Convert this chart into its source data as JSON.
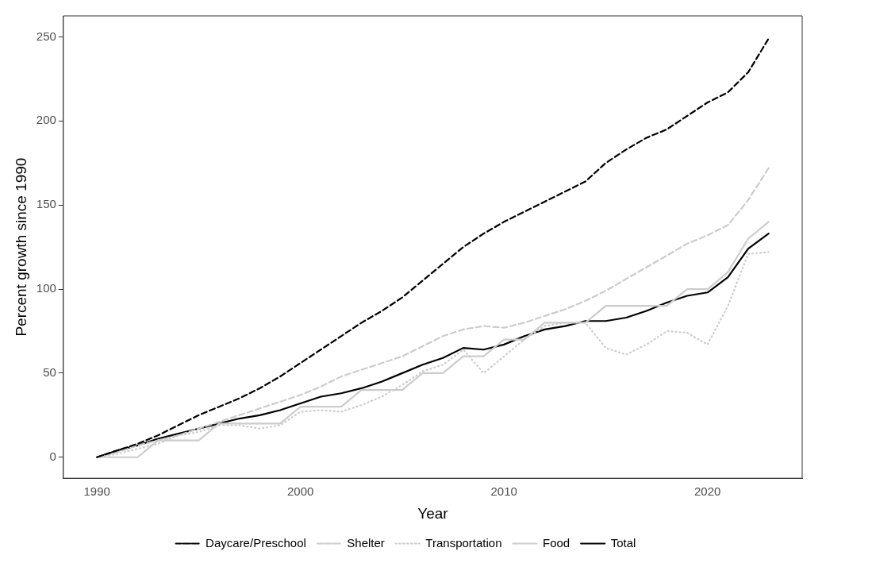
{
  "chart_data": {
    "type": "line",
    "xlabel": "Year",
    "ylabel": "Percent growth since 1990",
    "x": [
      1990,
      1991,
      1992,
      1993,
      1994,
      1995,
      1996,
      1997,
      1998,
      1999,
      2000,
      2001,
      2002,
      2003,
      2004,
      2005,
      2006,
      2007,
      2008,
      2009,
      2010,
      2011,
      2012,
      2013,
      2014,
      2015,
      2016,
      2017,
      2018,
      2019,
      2020,
      2021,
      2022,
      2023
    ],
    "xlim": [
      1988.35,
      2024.65
    ],
    "xticks": [
      1990,
      2000,
      2010,
      2020
    ],
    "ylim": [
      -12.5,
      262.5
    ],
    "yticks": [
      0,
      50,
      100,
      150,
      200,
      250
    ],
    "grid": false,
    "legend": "bottom",
    "marker": "none",
    "series": [
      {
        "name": "Daycare/Preschool",
        "color": "#000000",
        "line_style": "dashed",
        "values": [
          0,
          4,
          8,
          13,
          19,
          25,
          30,
          35,
          41,
          48,
          56,
          64,
          72,
          80,
          87,
          95,
          105,
          115,
          125,
          133,
          140,
          146,
          152,
          158,
          164,
          175,
          183,
          190,
          195,
          203,
          211,
          217,
          229,
          249
        ]
      },
      {
        "name": "Shelter",
        "color": "#cccccc",
        "line_style": "dashed",
        "values": [
          0,
          3,
          7,
          10,
          13,
          17,
          21,
          25,
          29,
          33,
          37,
          42,
          48,
          52,
          56,
          60,
          66,
          72,
          76,
          78,
          77,
          80,
          84,
          88,
          93,
          99,
          106,
          113,
          120,
          127,
          132,
          138,
          153,
          172
        ]
      },
      {
        "name": "Transportation",
        "color": "#cccccc",
        "line_style": "dotted",
        "values": [
          0,
          2,
          5,
          8,
          13,
          15,
          19,
          19,
          17,
          19,
          27,
          28,
          27,
          31,
          36,
          43,
          51,
          55,
          64,
          50,
          60,
          70,
          78,
          80,
          80,
          65,
          61,
          67,
          75,
          74,
          67,
          90,
          121,
          122
        ]
      },
      {
        "name": "Food",
        "color": "#cccccc",
        "line_style": "solid",
        "values": [
          0,
          0,
          0,
          10,
          10,
          10,
          20,
          20,
          20,
          20,
          30,
          30,
          30,
          40,
          40,
          40,
          50,
          50,
          60,
          60,
          70,
          70,
          80,
          80,
          80,
          90,
          90,
          90,
          90,
          100,
          100,
          110,
          130,
          140
        ]
      },
      {
        "name": "Total",
        "color": "#000000",
        "line_style": "solid",
        "values": [
          0,
          4,
          7,
          11,
          14,
          17,
          20,
          23,
          25,
          28,
          32,
          36,
          38,
          41,
          45,
          50,
          55,
          59,
          65,
          64,
          67,
          72,
          76,
          78,
          81,
          81,
          83,
          87,
          92,
          96,
          98,
          107,
          124,
          133
        ]
      }
    ]
  }
}
